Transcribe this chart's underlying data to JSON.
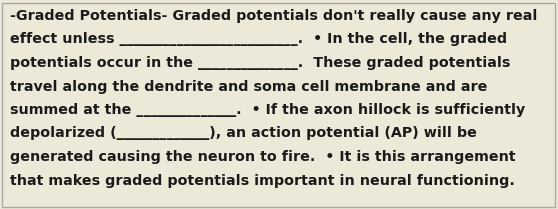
{
  "background_color": "#ede9d8",
  "border_color": "#aaaaaa",
  "text_color": "#1a1a1a",
  "font_size": 10.3,
  "font_family": "DejaVu Sans",
  "font_weight": "bold",
  "figsize": [
    5.58,
    2.09
  ],
  "dpi": 100,
  "lines": [
    "-Graded Potentials- Graded potentials don't really cause any real",
    "effect unless _________________________.  • In the cell, the graded",
    "potentials occur in the ______________.  These graded potentials",
    "travel along the dendrite and soma cell membrane and are",
    "summed at the ______________.  • If the axon hillock is sufficiently",
    "depolarized (_____________), an action potential (AP) will be",
    "generated causing the neuron to fire.  • It is this arrangement",
    "that makes graded potentials important in neural functioning."
  ]
}
